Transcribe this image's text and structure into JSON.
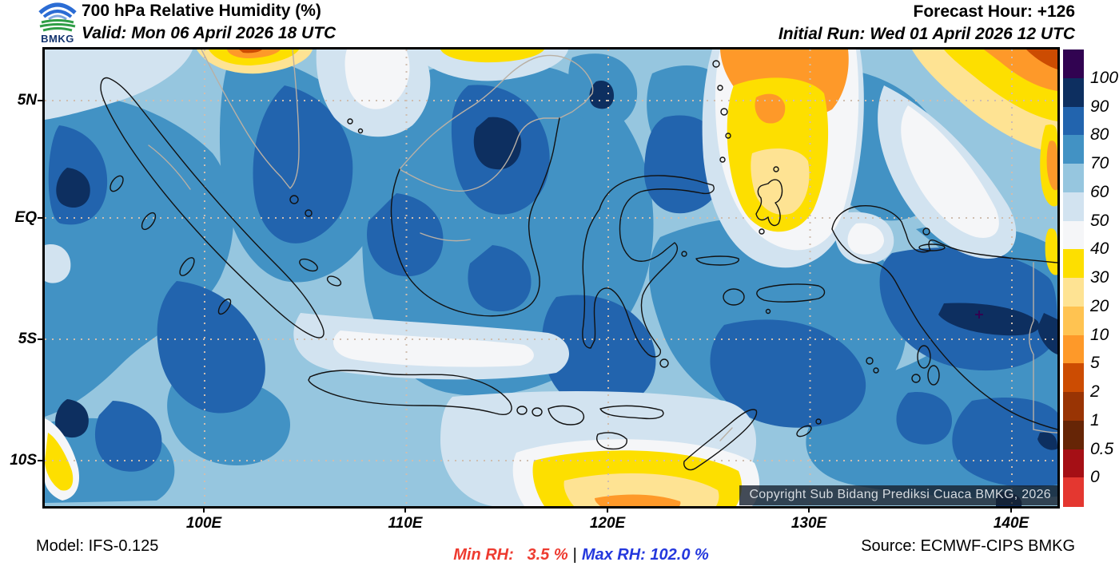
{
  "header": {
    "title": "700 hPa Relative Humidity (%)",
    "valid": "Valid: Mon 06 April 2026 18 UTC",
    "forecast_hour": "Forecast Hour: +126",
    "initial_run": "Initial Run: Wed 01 April 2026 12 UTC",
    "logo_text": "BMKG"
  },
  "map": {
    "lat_ticks": [
      "5N",
      "EQ",
      "5S",
      "10S"
    ],
    "lon_ticks": [
      "100E",
      "110E",
      "120E",
      "130E",
      "140E"
    ],
    "copyright": "Copyright Sub Bidang Prediksi Cuaca BMKG, 2026"
  },
  "colorbar": {
    "labels": [
      "100",
      "90",
      "80",
      "70",
      "60",
      "50",
      "40",
      "30",
      "20",
      "10",
      "5",
      "2",
      "1",
      "0.5",
      "0"
    ],
    "colors": [
      "#310351",
      "#0d2f60",
      "#2264ae",
      "#4292c4",
      "#96c6df",
      "#d2e3f0",
      "#f5f6f8",
      "#fddf00",
      "#fee393",
      "#ffc351",
      "#fe9929",
      "#cc4c02",
      "#993404",
      "#662506",
      "#a50f15",
      "#e43730"
    ]
  },
  "footer": {
    "model": "Model: IFS-0.125",
    "min_rh_label": "Min RH:",
    "min_rh_value": "3.5 %",
    "separator": "|",
    "max_rh_label": "Max RH:",
    "max_rh_value": "102.0 %",
    "source": "Source: ECMWF-CIPS BMKG",
    "min_color": "#ee3b30",
    "max_color": "#2438dd"
  }
}
